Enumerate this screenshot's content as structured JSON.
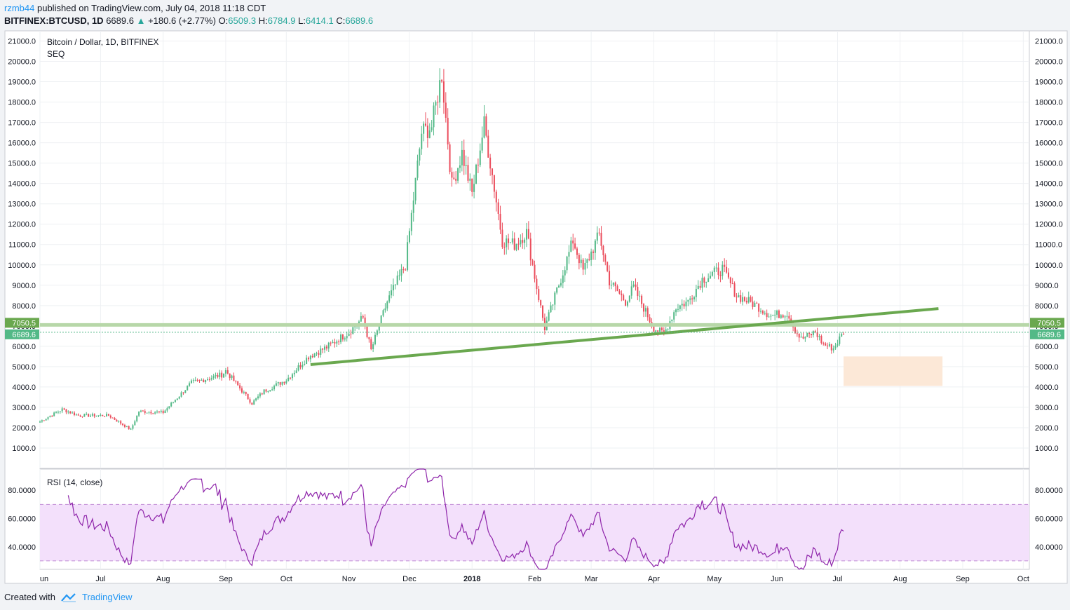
{
  "header": {
    "author": "rzmb44",
    "published_text": "published on TradingView.com, July 04, 2018 11:18 CDT",
    "symbol": "BITFINEX:BTCUSD, 1D",
    "last": "6689.6",
    "change": "+180.6 (+2.77%)",
    "open_label": "O:",
    "open": "6509.3",
    "high_label": "H:",
    "high": "6784.9",
    "low_label": "L:",
    "low": "6414.1",
    "close_label": "C:",
    "close": "6689.6"
  },
  "footer": {
    "created_with": "Created with",
    "brand": "TradingView"
  },
  "colors": {
    "up": "#53b987",
    "down": "#eb4d5c",
    "trendline": "#6aa84f",
    "rsi": "#8e24aa",
    "rsi_band": "#f3e0fb",
    "zone": "#fce8d7",
    "accent": "#2196f3"
  },
  "chart_data": [
    {
      "type": "candlestick",
      "title": "Bitcoin / Dollar, 1D, BITFINEX",
      "subtitle": "SEQ",
      "ylim": [
        0,
        21500
      ],
      "y_ticks": [
        "21000.0",
        "20000.0",
        "19000.0",
        "18000.0",
        "17000.0",
        "16000.0",
        "15000.0",
        "14000.0",
        "13000.0",
        "12000.0",
        "11000.0",
        "10000.0",
        "9000.0",
        "8000.0",
        "7000.0",
        "6000.0",
        "5000.0",
        "4000.0",
        "3000.0",
        "2000.0",
        "1000.0"
      ],
      "x_ticks": [
        "un",
        "Jul",
        "Aug",
        "Sep",
        "Oct",
        "Nov",
        "Dec",
        "2018",
        "Feb",
        "Mar",
        "Apr",
        "May",
        "Jun",
        "Jul",
        "Aug",
        "Sep",
        "Oct"
      ],
      "x_start": "2017-06-01",
      "x_end": "2018-10-04",
      "key_points": [
        {
          "date": "2017-06-01",
          "close": 2300
        },
        {
          "date": "2017-06-12",
          "close": 2900
        },
        {
          "date": "2017-06-20",
          "close": 2600
        },
        {
          "date": "2017-07-05",
          "close": 2600
        },
        {
          "date": "2017-07-16",
          "close": 1900
        },
        {
          "date": "2017-07-20",
          "close": 2800
        },
        {
          "date": "2017-08-01",
          "close": 2750
        },
        {
          "date": "2017-08-15",
          "close": 4200
        },
        {
          "date": "2017-08-30",
          "close": 4600
        },
        {
          "date": "2017-09-01",
          "close": 4800
        },
        {
          "date": "2017-09-14",
          "close": 3200
        },
        {
          "date": "2017-09-20",
          "close": 3800
        },
        {
          "date": "2017-10-01",
          "close": 4350
        },
        {
          "date": "2017-10-12",
          "close": 5500
        },
        {
          "date": "2017-10-21",
          "close": 5950
        },
        {
          "date": "2017-11-01",
          "close": 6700
        },
        {
          "date": "2017-11-08",
          "close": 7400
        },
        {
          "date": "2017-11-12",
          "close": 5800
        },
        {
          "date": "2017-11-20",
          "close": 8200
        },
        {
          "date": "2017-11-29",
          "close": 10000
        },
        {
          "date": "2017-12-07",
          "close": 16500
        },
        {
          "date": "2017-12-12",
          "close": 16800
        },
        {
          "date": "2017-12-17",
          "close": 19400
        },
        {
          "date": "2017-12-22",
          "close": 13900
        },
        {
          "date": "2017-12-27",
          "close": 15500
        },
        {
          "date": "2018-01-01",
          "close": 13500
        },
        {
          "date": "2018-01-07",
          "close": 16900
        },
        {
          "date": "2018-01-12",
          "close": 13800
        },
        {
          "date": "2018-01-16",
          "close": 11200
        },
        {
          "date": "2018-01-22",
          "close": 11000
        },
        {
          "date": "2018-01-28",
          "close": 11600
        },
        {
          "date": "2018-02-02",
          "close": 8900
        },
        {
          "date": "2018-02-06",
          "close": 6900
        },
        {
          "date": "2018-02-10",
          "close": 8100
        },
        {
          "date": "2018-02-20",
          "close": 11200
        },
        {
          "date": "2018-02-25",
          "close": 9700
        },
        {
          "date": "2018-03-05",
          "close": 11500
        },
        {
          "date": "2018-03-10",
          "close": 9200
        },
        {
          "date": "2018-03-18",
          "close": 8200
        },
        {
          "date": "2018-03-22",
          "close": 8900
        },
        {
          "date": "2018-04-01",
          "close": 6900
        },
        {
          "date": "2018-04-06",
          "close": 6600
        },
        {
          "date": "2018-04-12",
          "close": 7900
        },
        {
          "date": "2018-04-18",
          "close": 8200
        },
        {
          "date": "2018-04-25",
          "close": 9300
        },
        {
          "date": "2018-05-05",
          "close": 9800
        },
        {
          "date": "2018-05-12",
          "close": 8500
        },
        {
          "date": "2018-05-22",
          "close": 8000
        },
        {
          "date": "2018-05-29",
          "close": 7500
        },
        {
          "date": "2018-06-06",
          "close": 7650
        },
        {
          "date": "2018-06-10",
          "close": 6800
        },
        {
          "date": "2018-06-13",
          "close": 6350
        },
        {
          "date": "2018-06-20",
          "close": 6700
        },
        {
          "date": "2018-06-24",
          "close": 6100
        },
        {
          "date": "2018-06-29",
          "close": 5900
        },
        {
          "date": "2018-07-04",
          "close": 6689.6
        }
      ],
      "price_labels": [
        {
          "text": "7050.5",
          "price": 7050.5,
          "color": "#6aa84f"
        },
        {
          "text": "6689.6",
          "price": 6689.6,
          "color": "#53b987"
        }
      ],
      "drawings": [
        {
          "kind": "horizontal-line",
          "price": 7050.5
        },
        {
          "kind": "trendline",
          "from": {
            "date": "2017-10-13",
            "price": 5100
          },
          "to": {
            "date": "2018-08-20",
            "price": 7850
          }
        },
        {
          "kind": "zone",
          "from": {
            "date": "2018-07-04",
            "price": 5500
          },
          "to": {
            "date": "2018-08-22",
            "price": 4050
          }
        }
      ]
    },
    {
      "type": "line",
      "title": "RSI (14, close)",
      "ylim": [
        24,
        95
      ],
      "y_ticks": [
        "80.0000",
        "60.0000",
        "40.0000"
      ],
      "band": [
        30,
        70
      ]
    }
  ]
}
